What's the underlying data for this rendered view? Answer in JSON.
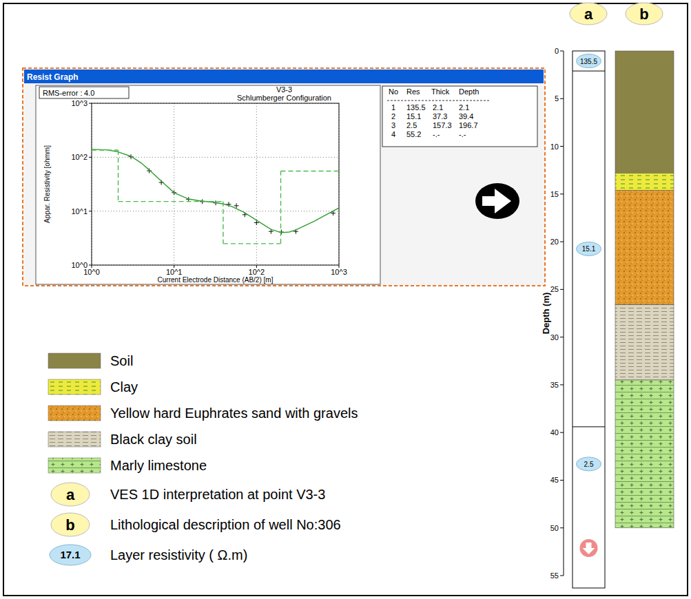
{
  "window": {
    "title": "Resist Graph"
  },
  "rms": {
    "label": "RMS-error :",
    "value": "4.0"
  },
  "chart_data": {
    "type": "line",
    "title": "V3-3",
    "subtitle": "Schlumberger Configuration",
    "x_label": "Current Electrode Distance (AB/2) [m]",
    "y_label": "Appar. Resistivity [ohmm]",
    "log": true,
    "grid": true,
    "xlim": [
      1,
      1000
    ],
    "ylim": [
      1,
      1000
    ],
    "xticks": [
      {
        "value": 1,
        "label": "10^0"
      },
      {
        "value": 10,
        "label": "10^1"
      },
      {
        "value": 100,
        "label": "10^2"
      },
      {
        "value": 1000,
        "label": "10^3"
      }
    ],
    "yticks": [
      {
        "value": 1,
        "label": "10^0"
      },
      {
        "value": 10,
        "label": "10^1"
      },
      {
        "value": 100,
        "label": "10^2"
      },
      {
        "value": 1000,
        "label": "10^3"
      }
    ],
    "series": [
      {
        "type": "scatter",
        "marker": "plus",
        "color": "#111111",
        "x": [
          3,
          5,
          7,
          10,
          15,
          22,
          32,
          46,
          57,
          72,
          100,
          150,
          200,
          300,
          850
        ],
        "values": [
          102,
          56,
          34,
          22,
          16.5,
          15,
          14.2,
          13.4,
          12.6,
          8.6,
          6.1,
          4.2,
          4.1,
          4.2,
          9.2
        ]
      },
      {
        "type": "line",
        "color": "#2f9e2f",
        "x": [
          1,
          1.5,
          2,
          3,
          4,
          5,
          7,
          10,
          15,
          20,
          30,
          40,
          50,
          70,
          100,
          150,
          200,
          250,
          300,
          500,
          700,
          1000
        ],
        "values": [
          140,
          137,
          128,
          104,
          78,
          58,
          36,
          22,
          16.8,
          15.6,
          14.6,
          13.6,
          12.2,
          9.6,
          6.8,
          4.6,
          4.0,
          4.1,
          4.5,
          6.5,
          8.6,
          11.5
        ]
      },
      {
        "type": "step",
        "line_style": "dashed",
        "color": "#4cb84c"
      }
    ],
    "table": {
      "header": [
        "No",
        "Res",
        "Thick",
        "Depth"
      ],
      "rows": [
        [
          1,
          135.5,
          2.1,
          2.1
        ],
        [
          2,
          15.1,
          37.3,
          39.4
        ],
        [
          3,
          2.5,
          157.3,
          196.7
        ],
        [
          4,
          55.2,
          "-.-",
          "-.-"
        ]
      ]
    }
  },
  "lithology": {
    "y_label": "Depth (m)",
    "ylim": [
      0,
      55
    ],
    "yticks": [
      0,
      5,
      10,
      15,
      20,
      25,
      30,
      35,
      40,
      45,
      50,
      55
    ],
    "units": [
      {
        "label": "Soil",
        "color": "#8b8447"
      },
      {
        "label": "Clay",
        "color": "#eeea3c"
      },
      {
        "label": "Yellow hard Euphrates sand with gravels",
        "color": "#e39a2d"
      },
      {
        "label": "Black clay soil",
        "color": "#dcd5bf"
      },
      {
        "label": "Marly limestone",
        "color": "#b8e68c"
      }
    ],
    "layers": [
      {
        "unit": 0,
        "top": 0,
        "bottom": 12.8
      },
      {
        "unit": 1,
        "top": 12.8,
        "bottom": 14.6
      },
      {
        "unit": 2,
        "top": 14.6,
        "bottom": 26.6
      },
      {
        "unit": 3,
        "top": 26.6,
        "bottom": 34.5
      },
      {
        "unit": 4,
        "top": 34.5,
        "bottom": 50
      }
    ]
  },
  "keys": [
    {
      "badge": "a",
      "text": "VES 1D interpretation at point V3-3"
    },
    {
      "badge": "b",
      "text": "Lithological description of well No:306"
    },
    {
      "badge": "17.1",
      "text": "Layer resistivity ( Ω.m)"
    }
  ]
}
